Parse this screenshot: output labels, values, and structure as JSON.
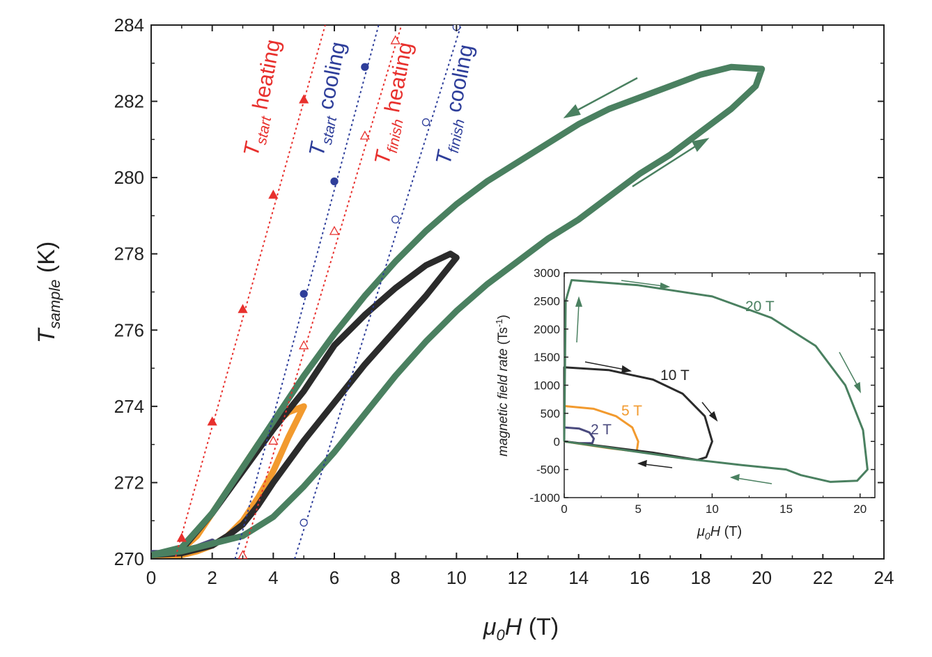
{
  "chart_data": [
    {
      "type": "line",
      "xlabel": {
        "symbol": "μ",
        "sub": "0",
        "rest": "H",
        "unit": "(T)"
      },
      "ylabel": {
        "symbol": "T",
        "sub": "sample",
        "unit": "(K)"
      },
      "xlim": [
        0,
        24
      ],
      "ylim": [
        270,
        284
      ],
      "xticks": [
        "0",
        "2",
        "4",
        "6",
        "8",
        "10",
        "12",
        "14",
        "16",
        "18",
        "20",
        "22",
        "24"
      ],
      "yticks": [
        "270",
        "272",
        "274",
        "276",
        "278",
        "280",
        "282",
        "284"
      ],
      "loops": [
        {
          "field_T": 2,
          "color": "#4a4a7e",
          "up": [
            [
              0,
              270.15
            ],
            [
              0.5,
              270.15
            ],
            [
              1,
              270.2
            ],
            [
              1.5,
              270.3
            ],
            [
              2,
              270.45
            ]
          ],
          "down": [
            [
              2,
              270.45
            ],
            [
              1.5,
              270.3
            ],
            [
              1,
              270.15
            ],
            [
              0.5,
              270.1
            ],
            [
              0,
              270.1
            ]
          ]
        },
        {
          "field_T": 5,
          "color": "#f29a2e",
          "up": [
            [
              0,
              270.1
            ],
            [
              0.5,
              270.15
            ],
            [
              1,
              270.25
            ],
            [
              1.5,
              270.6
            ],
            [
              2,
              271.2
            ],
            [
              2.5,
              271.8
            ],
            [
              3,
              272.4
            ],
            [
              3.5,
              273.0
            ],
            [
              4,
              273.5
            ],
            [
              4.5,
              273.85
            ],
            [
              5,
              274.0
            ]
          ],
          "down": [
            [
              5,
              274.0
            ],
            [
              4.5,
              273.2
            ],
            [
              4,
              272.3
            ],
            [
              3.5,
              271.6
            ],
            [
              3,
              271.0
            ],
            [
              2.5,
              270.6
            ],
            [
              2,
              270.35
            ],
            [
              1.5,
              270.2
            ],
            [
              1,
              270.1
            ],
            [
              0.5,
              270.1
            ],
            [
              0,
              270.1
            ]
          ]
        },
        {
          "field_T": 10,
          "color": "#2b2b2b",
          "up": [
            [
              0,
              270.1
            ],
            [
              1,
              270.25
            ],
            [
              2,
              271.2
            ],
            [
              3,
              272.3
            ],
            [
              4,
              273.4
            ],
            [
              5,
              274.4
            ],
            [
              6,
              275.6
            ],
            [
              7,
              276.4
            ],
            [
              8,
              277.1
            ],
            [
              9,
              277.7
            ],
            [
              9.8,
              278.0
            ],
            [
              10,
              277.9
            ]
          ],
          "down": [
            [
              10,
              277.9
            ],
            [
              9.5,
              277.4
            ],
            [
              9,
              276.9
            ],
            [
              8,
              276.0
            ],
            [
              7,
              275.1
            ],
            [
              6,
              274.1
            ],
            [
              5,
              273.1
            ],
            [
              4,
              272.0
            ],
            [
              3.5,
              271.4
            ],
            [
              3,
              270.9
            ],
            [
              2.5,
              270.6
            ],
            [
              2,
              270.35
            ],
            [
              1,
              270.15
            ],
            [
              0,
              270.1
            ]
          ]
        },
        {
          "field_T": 20,
          "color": "#4a8060",
          "up": [
            [
              0,
              270.1
            ],
            [
              1,
              270.3
            ],
            [
              2,
              271.2
            ],
            [
              3,
              272.4
            ],
            [
              4,
              273.6
            ],
            [
              5,
              274.8
            ],
            [
              6,
              275.9
            ],
            [
              7,
              276.9
            ],
            [
              8,
              277.8
            ],
            [
              9,
              278.6
            ],
            [
              10,
              279.3
            ],
            [
              11,
              279.9
            ],
            [
              12,
              280.4
            ],
            [
              13,
              280.9
            ],
            [
              14,
              281.4
            ],
            [
              15,
              281.8
            ],
            [
              16,
              282.1
            ],
            [
              17,
              282.4
            ],
            [
              18,
              282.7
            ],
            [
              19,
              282.9
            ],
            [
              20,
              282.85
            ]
          ],
          "down": [
            [
              20,
              282.85
            ],
            [
              19.8,
              282.4
            ],
            [
              19,
              281.8
            ],
            [
              18,
              281.2
            ],
            [
              17,
              280.6
            ],
            [
              16,
              280.1
            ],
            [
              15,
              279.5
            ],
            [
              14,
              278.9
            ],
            [
              13,
              278.4
            ],
            [
              12,
              277.8
            ],
            [
              11,
              277.2
            ],
            [
              10,
              276.5
            ],
            [
              9,
              275.7
            ],
            [
              8,
              274.8
            ],
            [
              7,
              273.8
            ],
            [
              6,
              272.8
            ],
            [
              5,
              271.9
            ],
            [
              4,
              271.1
            ],
            [
              3,
              270.6
            ],
            [
              2,
              270.4
            ],
            [
              1,
              270.2
            ],
            [
              0,
              270.1
            ]
          ]
        }
      ],
      "markers": [
        {
          "name": "T_start heating",
          "color": "#e8302d",
          "symbol": "triangle-filled",
          "points": [
            [
              1,
              270.55
            ],
            [
              2,
              273.6
            ],
            [
              3,
              276.55
            ],
            [
              4,
              279.55
            ],
            [
              5,
              282.05
            ]
          ],
          "line": [
            [
              0.5,
              269.2
            ],
            [
              5.7,
              284
            ]
          ]
        },
        {
          "name": "T_start cooling",
          "color": "#2e3e9a",
          "symbol": "circle-filled",
          "points": [
            [
              5,
              276.95
            ],
            [
              6,
              279.9
            ],
            [
              7,
              282.9
            ]
          ],
          "line": [
            [
              2.75,
              270
            ],
            [
              7.45,
              284
            ]
          ]
        },
        {
          "name": "T_finish heating",
          "color": "#e8302d",
          "symbol": "triangle-open",
          "points": [
            [
              3,
              270.1
            ],
            [
              4,
              273.1
            ],
            [
              5,
              275.6
            ],
            [
              6,
              278.6
            ],
            [
              7,
              281.1
            ],
            [
              8,
              283.6
            ]
          ],
          "line": [
            [
              2.9,
              269.8
            ],
            [
              8.2,
              284
            ]
          ]
        },
        {
          "name": "T_finish cooling",
          "color": "#2e3e9a",
          "symbol": "circle-open",
          "points": [
            [
              5,
              270.95
            ],
            [
              8,
              278.9
            ],
            [
              9,
              281.45
            ],
            [
              10,
              283.95
            ]
          ],
          "line": [
            [
              4.7,
              270
            ],
            [
              10.15,
              284
            ]
          ]
        }
      ],
      "marker_labels": [
        {
          "main": "T",
          "sub": "start",
          "word": "heating",
          "color": "#e8302d"
        },
        {
          "main": "T",
          "sub": "start",
          "word": "cooling",
          "color": "#2e3e9a"
        },
        {
          "main": "T",
          "sub": "finish",
          "word": "heating",
          "color": "#e8302d"
        },
        {
          "main": "T",
          "sub": "finish",
          "word": "cooling",
          "color": "#2e3e9a"
        }
      ]
    },
    {
      "type": "line",
      "inset": true,
      "xlabel": {
        "symbol": "μ",
        "sub": "0",
        "rest": "H",
        "unit": "(T)"
      },
      "ylabel": {
        "text": "magnetic field rate",
        "unit": "(Ts",
        "sup": "-1",
        "close": ")"
      },
      "xlim": [
        0,
        21
      ],
      "ylim": [
        -1000,
        3000
      ],
      "xticks": [
        "0",
        "5",
        "10",
        "15",
        "20"
      ],
      "yticks": [
        "-1000",
        "-500",
        "0",
        "500",
        "1000",
        "1500",
        "2000",
        "2500",
        "3000"
      ],
      "series": [
        {
          "name": "2 T",
          "color": "#4a4a7e",
          "up": [
            [
              0,
              0
            ],
            [
              0,
              250
            ],
            [
              1,
              230
            ],
            [
              1.7,
              160
            ],
            [
              2,
              50
            ],
            [
              1.9,
              -30
            ]
          ],
          "down": [
            [
              1.9,
              -30
            ],
            [
              1,
              -30
            ],
            [
              0,
              0
            ]
          ]
        },
        {
          "name": "5 T",
          "color": "#f29a2e",
          "up": [
            [
              0,
              0
            ],
            [
              0,
              630
            ],
            [
              2,
              580
            ],
            [
              3.5,
              450
            ],
            [
              4.6,
              250
            ],
            [
              5,
              0
            ],
            [
              4.9,
              -180
            ]
          ],
          "down": [
            [
              4.9,
              -180
            ],
            [
              3,
              -120
            ],
            [
              1.5,
              -60
            ],
            [
              0,
              0
            ]
          ]
        },
        {
          "name": "10 T",
          "color": "#2b2b2b",
          "up": [
            [
              0,
              0
            ],
            [
              0,
              1320
            ],
            [
              3,
              1270
            ],
            [
              6,
              1100
            ],
            [
              8,
              850
            ],
            [
              9.5,
              450
            ],
            [
              10,
              0
            ],
            [
              9.6,
              -280
            ],
            [
              9,
              -330
            ]
          ],
          "down": [
            [
              9,
              -330
            ],
            [
              6,
              -200
            ],
            [
              3,
              -100
            ],
            [
              0,
              0
            ]
          ]
        },
        {
          "name": "20 T",
          "color": "#4a8060",
          "up": [
            [
              0,
              0
            ],
            [
              0.1,
              2500
            ],
            [
              0.5,
              2870
            ],
            [
              5,
              2780
            ],
            [
              10,
              2580
            ],
            [
              14,
              2200
            ],
            [
              17,
              1700
            ],
            [
              19,
              1000
            ],
            [
              20.2,
              200
            ],
            [
              20.5,
              -500
            ],
            [
              19.8,
              -700
            ],
            [
              18,
              -720
            ],
            [
              16,
              -600
            ],
            [
              15,
              -500
            ]
          ],
          "down": [
            [
              15,
              -500
            ],
            [
              12,
              -420
            ],
            [
              8,
              -300
            ],
            [
              4,
              -150
            ],
            [
              0,
              0
            ]
          ]
        }
      ]
    }
  ]
}
